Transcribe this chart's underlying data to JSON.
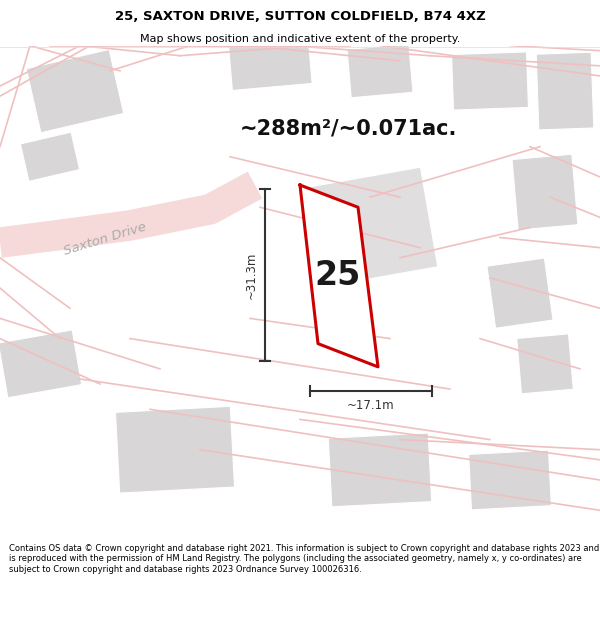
{
  "title": "25, SAXTON DRIVE, SUTTON COLDFIELD, B74 4XZ",
  "subtitle": "Map shows position and indicative extent of the property.",
  "footer": "Contains OS data © Crown copyright and database right 2021. This information is subject to Crown copyright and database rights 2023 and is reproduced with the permission of HM Land Registry. The polygons (including the associated geometry, namely x, y co-ordinates) are subject to Crown copyright and database rights 2023 Ordnance Survey 100026316.",
  "area_text": "~288m²/~0.071ac.",
  "dim_height": "~31.3m",
  "dim_width": "~17.1m",
  "label": "25",
  "map_bg": "#f2f0f0",
  "road_color": "#f0c0c0",
  "road_fill": "#f8f0f0",
  "building_color": "#d8d6d6",
  "building_edge": "#cccccc",
  "highlight_color": "#cc0000",
  "dim_color": "#333333",
  "road_label": "Saxton Drive",
  "road_label_color": "#aaaaaa",
  "title_fontsize": 9.5,
  "subtitle_fontsize": 8,
  "footer_fontsize": 6.0,
  "area_fontsize": 15,
  "label_fontsize": 24,
  "dim_fontsize": 8.5
}
